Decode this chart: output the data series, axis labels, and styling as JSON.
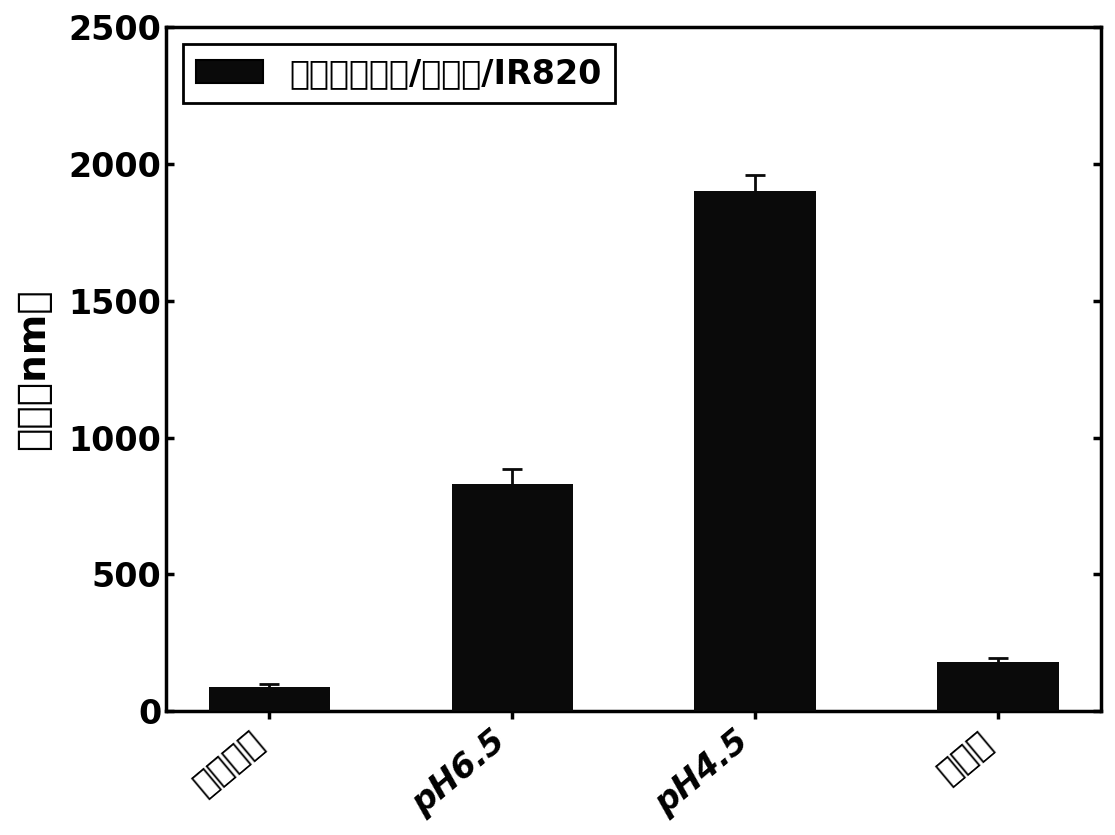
{
  "categories": [
    "原始制剂",
    "pH6.5",
    "pH4.5",
    "细胞液"
  ],
  "values": [
    90,
    830,
    1900,
    180
  ],
  "errors": [
    10,
    55,
    60,
    15
  ],
  "bar_color": "#0a0a0a",
  "bar_width": 0.5,
  "ylabel": "粒径（nm）",
  "ylim": [
    0,
    2500
  ],
  "yticks": [
    0,
    500,
    1000,
    1500,
    2000,
    2500
  ],
  "legend_label": "盐酸柔红霉素/茶多酜/IR820",
  "background_color": "#ffffff",
  "axis_fontsize": 28,
  "tick_fontsize": 24,
  "legend_fontsize": 24,
  "error_capsize": 7,
  "error_linewidth": 2.0,
  "spine_linewidth": 2.5
}
